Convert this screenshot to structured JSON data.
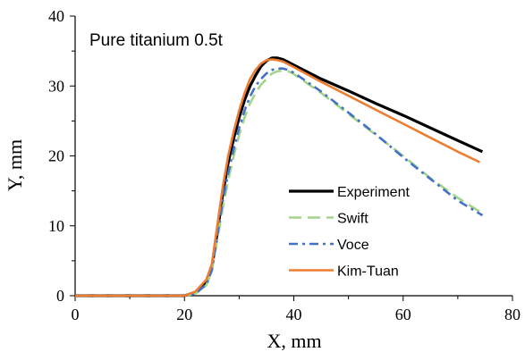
{
  "chart_data": {
    "type": "line",
    "title": "",
    "annotation": "Pure titanium 0.5t",
    "xlabel": "X, mm",
    "ylabel": "Y, mm",
    "xlim": [
      0,
      80
    ],
    "ylim": [
      0,
      40
    ],
    "x_ticks": [
      0,
      20,
      40,
      60,
      80
    ],
    "y_ticks": [
      0,
      10,
      20,
      30,
      40
    ],
    "grid": false,
    "legend_position": "bottom-right",
    "series": [
      {
        "name": "Experiment",
        "color": "#000000",
        "style": "solid",
        "x": [
          0,
          10,
          20,
          22,
          24,
          25,
          26,
          27,
          28,
          29,
          30,
          31,
          32,
          33,
          34,
          35,
          36,
          37,
          38,
          39,
          40,
          45,
          50,
          55,
          60,
          65,
          70,
          74.5
        ],
        "y": [
          0,
          0,
          0,
          0.5,
          2,
          4,
          9,
          14.5,
          19,
          22.5,
          25.5,
          28,
          30,
          31.5,
          32.8,
          33.6,
          34,
          34,
          33.8,
          33.4,
          33,
          31,
          29.3,
          27.5,
          25.8,
          24,
          22.2,
          20.6
        ]
      },
      {
        "name": "Swift",
        "color": "#a3d48c",
        "style": "dashed",
        "x": [
          0,
          10,
          20,
          22,
          24,
          25,
          26,
          27,
          28,
          29,
          30,
          31,
          32,
          33,
          34,
          35,
          36,
          37,
          38,
          39,
          40,
          45,
          50,
          55,
          60,
          65,
          70,
          74.5
        ],
        "y": [
          0,
          0,
          0,
          0.3,
          1.5,
          3.5,
          8,
          12.5,
          16.5,
          20,
          23,
          25.5,
          27.5,
          29,
          30.2,
          31,
          31.8,
          32.1,
          32.2,
          32.1,
          31.7,
          29,
          26,
          23,
          20,
          16.8,
          14,
          11.8
        ]
      },
      {
        "name": "Voce",
        "color": "#4472c4",
        "style": "dashdot",
        "x": [
          0,
          10,
          20,
          22,
          24,
          25,
          26,
          27,
          28,
          29,
          30,
          31,
          32,
          33,
          34,
          35,
          36,
          37,
          38,
          39,
          40,
          45,
          50,
          55,
          60,
          65,
          70,
          74.5
        ],
        "y": [
          0,
          0,
          0,
          0.3,
          1.6,
          3.6,
          8.5,
          13.5,
          17.5,
          21,
          24,
          26.5,
          28.5,
          30,
          31,
          31.8,
          32.3,
          32.5,
          32.5,
          32.3,
          31.9,
          29.2,
          26.2,
          23.1,
          19.8,
          16.7,
          13.6,
          11.5
        ]
      },
      {
        "name": "Kim-Tuan",
        "color": "#ed7d31",
        "style": "solid",
        "x": [
          0,
          10,
          20,
          22,
          24,
          25,
          26,
          27,
          28,
          29,
          30,
          31,
          32,
          33,
          34,
          35,
          36,
          37,
          38,
          39,
          40,
          45,
          50,
          55,
          60,
          65,
          70,
          74
        ],
        "y": [
          0,
          0,
          0,
          0.6,
          2.3,
          4.5,
          10,
          15.5,
          20,
          23.5,
          26.5,
          29,
          31,
          32.3,
          33.2,
          33.7,
          33.8,
          33.7,
          33.5,
          33.1,
          32.7,
          30.6,
          28.6,
          26.6,
          24.6,
          22.6,
          20.6,
          19.1
        ]
      }
    ]
  }
}
